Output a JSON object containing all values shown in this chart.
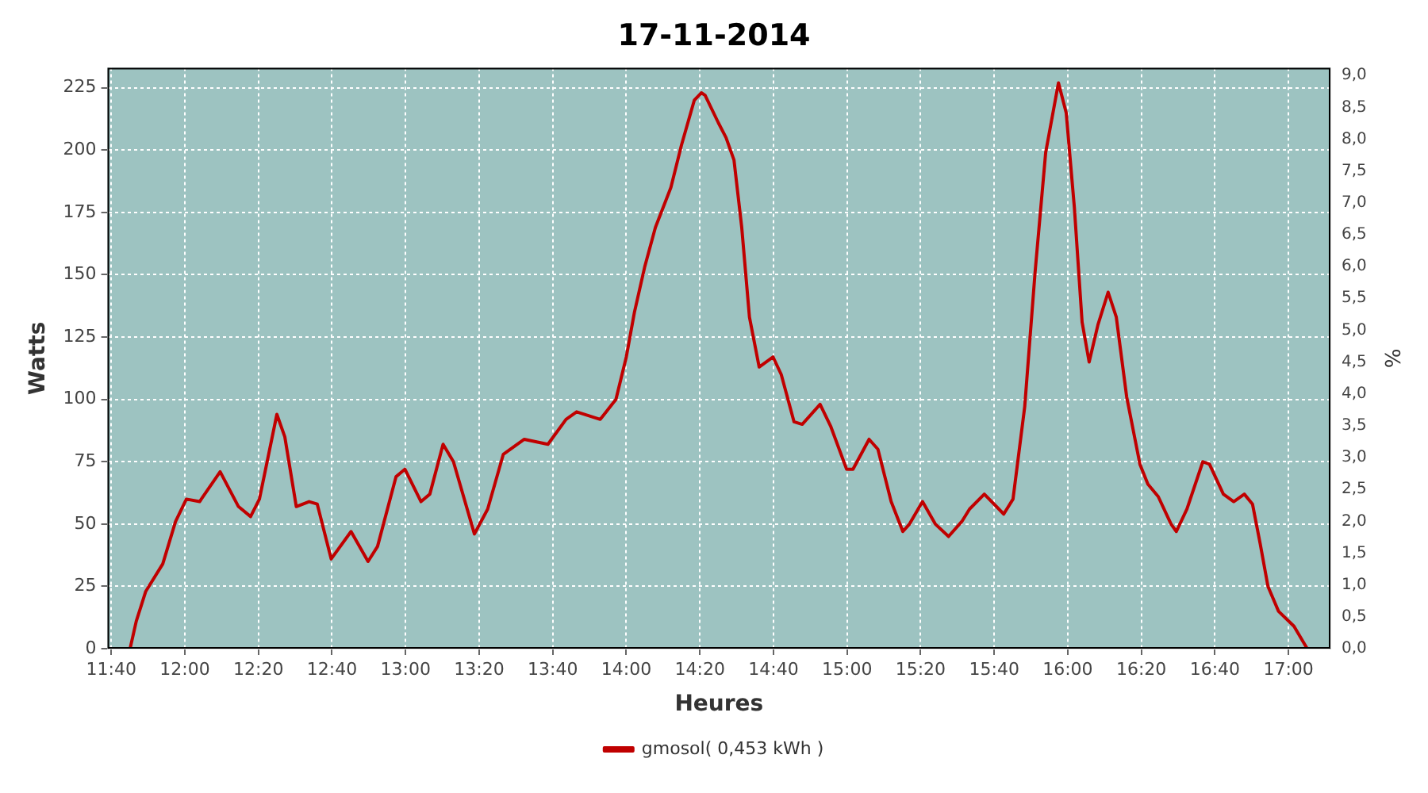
{
  "chart_data": {
    "type": "line",
    "title": "17-11-2014",
    "xlabel": "Heures",
    "ylabel": "Watts",
    "y2label": "%",
    "xlim": [
      11.65,
      17.19
    ],
    "ylim": [
      0,
      233
    ],
    "y2lim": [
      0,
      9.12
    ],
    "xticks": [
      {
        "value": 11.6667,
        "label": "11:40"
      },
      {
        "value": 12,
        "label": "12:00"
      },
      {
        "value": 12.3333,
        "label": "12:20"
      },
      {
        "value": 12.6667,
        "label": "12:40"
      },
      {
        "value": 13,
        "label": "13:00"
      },
      {
        "value": 13.3333,
        "label": "13:20"
      },
      {
        "value": 13.6667,
        "label": "13:40"
      },
      {
        "value": 14,
        "label": "14:00"
      },
      {
        "value": 14.3333,
        "label": "14:20"
      },
      {
        "value": 14.6667,
        "label": "14:40"
      },
      {
        "value": 15,
        "label": "15:00"
      },
      {
        "value": 15.3333,
        "label": "15:20"
      },
      {
        "value": 15.6667,
        "label": "15:40"
      },
      {
        "value": 16,
        "label": "16:00"
      },
      {
        "value": 16.3333,
        "label": "16:20"
      },
      {
        "value": 16.6667,
        "label": "16:40"
      },
      {
        "value": 17,
        "label": "17:00"
      }
    ],
    "yticks": [
      0,
      25,
      50,
      75,
      100,
      125,
      150,
      175,
      200,
      225
    ],
    "y2ticks": [
      {
        "value": 0,
        "label": "0,0"
      },
      {
        "value": 0.5,
        "label": "0,5"
      },
      {
        "value": 1,
        "label": "1,0"
      },
      {
        "value": 1.5,
        "label": "1,5"
      },
      {
        "value": 2,
        "label": "2,0"
      },
      {
        "value": 2.5,
        "label": "2,5"
      },
      {
        "value": 3,
        "label": "3,0"
      },
      {
        "value": 3.5,
        "label": "3,5"
      },
      {
        "value": 4,
        "label": "4,0"
      },
      {
        "value": 4.5,
        "label": "4,5"
      },
      {
        "value": 5,
        "label": "5,0"
      },
      {
        "value": 5.5,
        "label": "5,5"
      },
      {
        "value": 6,
        "label": "6,0"
      },
      {
        "value": 6.5,
        "label": "6,5"
      },
      {
        "value": 7,
        "label": "7,0"
      },
      {
        "value": 7.5,
        "label": "7,5"
      },
      {
        "value": 8,
        "label": "8,0"
      },
      {
        "value": 8.5,
        "label": "8,5"
      },
      {
        "value": 9,
        "label": "9,0"
      }
    ],
    "grid": true,
    "legend": "bottom",
    "marker": "none",
    "line_style": "solid",
    "series": [
      {
        "name": "gmosol( 0,453 kWh )",
        "color": "#c00000",
        "x": [
          11.752,
          11.78,
          11.823,
          11.9,
          11.958,
          12.007,
          12.067,
          12.16,
          12.243,
          12.298,
          12.338,
          12.417,
          12.453,
          12.505,
          12.563,
          12.6,
          12.663,
          12.753,
          12.83,
          12.873,
          12.957,
          12.997,
          13.07,
          13.11,
          13.17,
          13.217,
          13.312,
          13.372,
          13.443,
          13.538,
          13.645,
          13.727,
          13.775,
          13.882,
          13.953,
          14,
          14.037,
          14.083,
          14.132,
          14.202,
          14.25,
          14.308,
          14.34,
          14.357,
          14.417,
          14.452,
          14.488,
          14.523,
          14.558,
          14.602,
          14.665,
          14.702,
          14.76,
          14.797,
          14.878,
          14.927,
          14.998,
          15.027,
          15.1,
          15.14,
          15.2,
          15.253,
          15.283,
          15.342,
          15.4,
          15.46,
          15.52,
          15.555,
          15.622,
          15.71,
          15.752,
          15.805,
          15.852,
          15.9,
          15.958,
          15.993,
          16.03,
          16.065,
          16.097,
          16.137,
          16.183,
          16.22,
          16.267,
          16.327,
          16.363,
          16.41,
          16.468,
          16.492,
          16.54,
          16.612,
          16.642,
          16.705,
          16.752,
          16.8,
          16.837,
          16.872,
          16.907,
          16.955,
          17.025,
          17.085
        ],
        "values": [
          0,
          11,
          23,
          34,
          51,
          60,
          59,
          71,
          57,
          53,
          60,
          94,
          85,
          57,
          59,
          58,
          36,
          47,
          35,
          41,
          69,
          72,
          59,
          62,
          82,
          75,
          46,
          56,
          78,
          84,
          82,
          92,
          95,
          92,
          100,
          117,
          135,
          153,
          169,
          185,
          202,
          220,
          223,
          222,
          211,
          205,
          196,
          169,
          133,
          113,
          117,
          110,
          91,
          90,
          98,
          89,
          72,
          72,
          84,
          80,
          59,
          47,
          50,
          59,
          50,
          45,
          51,
          56,
          62,
          54,
          60,
          97,
          151,
          199,
          227,
          215,
          177,
          131,
          115,
          130,
          143,
          133,
          101,
          74,
          66,
          61,
          50,
          47,
          56,
          75,
          74,
          62,
          59,
          62,
          58,
          42,
          25,
          15,
          9,
          0
        ]
      }
    ]
  }
}
